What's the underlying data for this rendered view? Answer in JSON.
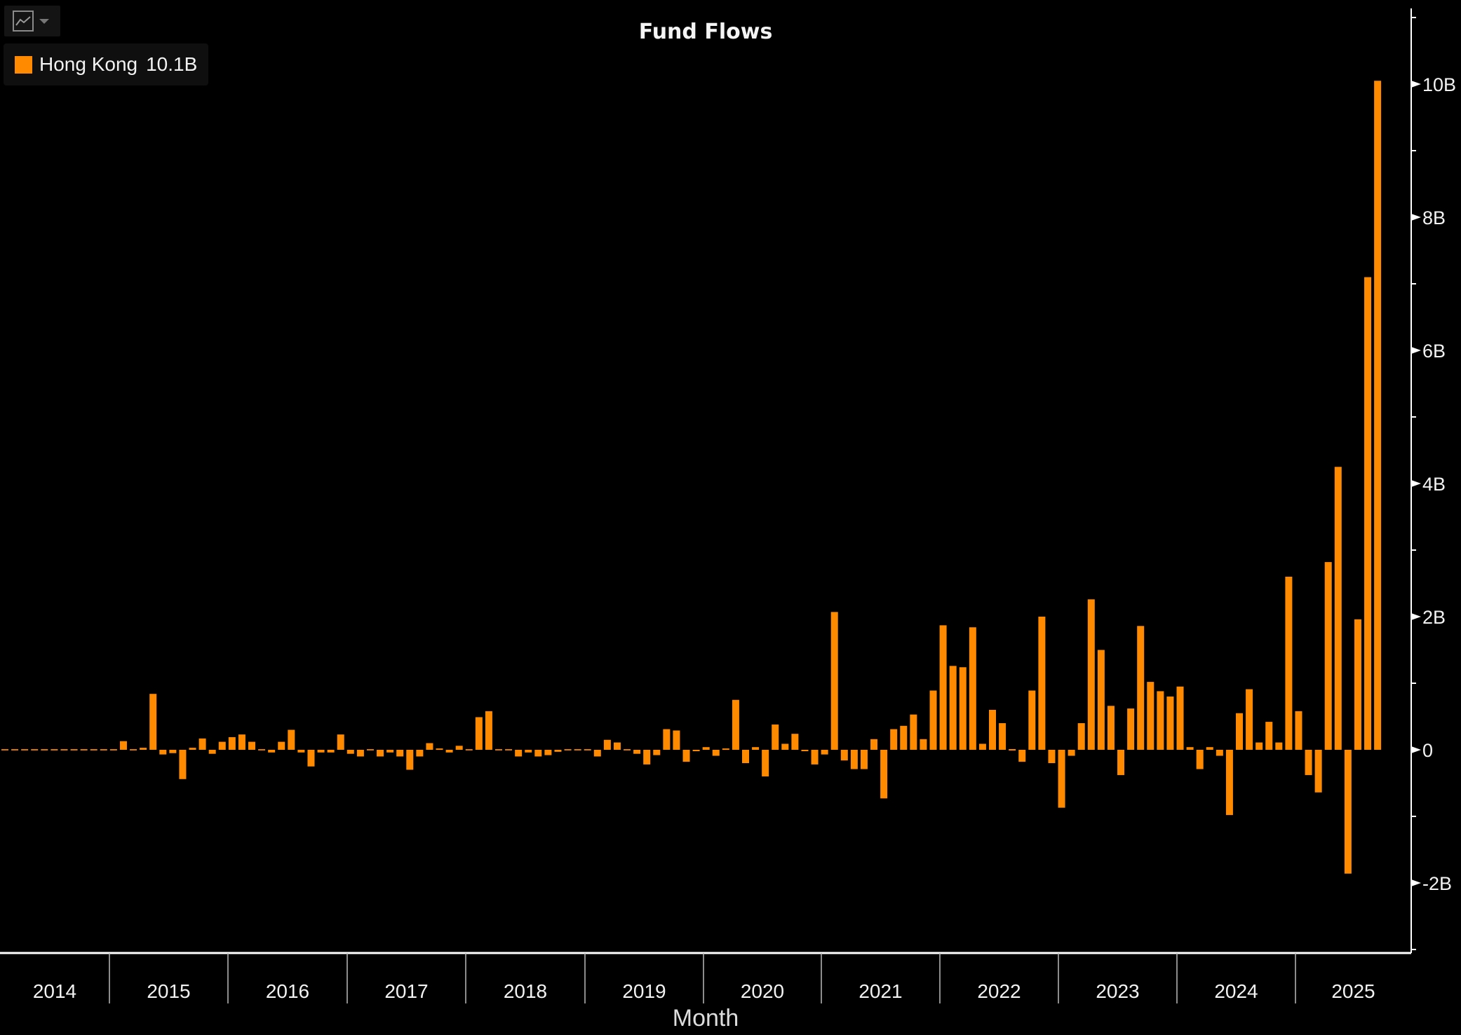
{
  "toolbar": {
    "chart_type_icon": "line-chart-icon",
    "dropdown_icon": "caret-down-icon"
  },
  "legend": {
    "series_name": "Hong Kong",
    "last_value": "10.1B",
    "color": "#ff8a00"
  },
  "colors": {
    "background": "#000000",
    "bar": "#ff8a00",
    "axis": "#ffffff",
    "text": "#f2f2f2"
  },
  "chart_data": {
    "type": "bar",
    "title": "Fund Flows",
    "xlabel": "Month",
    "ylabel": "",
    "y_unit": "B (USD billions)",
    "ylim": [
      -3,
      11
    ],
    "yticks": [
      -2,
      0,
      2,
      4,
      6,
      8,
      10
    ],
    "ytick_labels": [
      "-2B",
      "0",
      "2B",
      "4B",
      "6B",
      "8B",
      "10B"
    ],
    "x_year_labels": [
      "2014",
      "2015",
      "2016",
      "2017",
      "2018",
      "2019",
      "2020",
      "2021",
      "2022",
      "2023",
      "2024",
      "2025"
    ],
    "grid": false,
    "legend_position": "top-left",
    "y_axis_position": "right",
    "series": [
      {
        "name": "Hong Kong",
        "last_value_label": "10.1B",
        "start": "2014-02",
        "frequency": "monthly",
        "values": [
          0,
          0,
          0,
          0,
          0,
          0,
          0,
          0,
          0,
          0,
          0,
          0,
          0.13,
          0,
          0.03,
          0.84,
          -0.07,
          -0.05,
          -0.44,
          0.03,
          0.17,
          -0.06,
          0.12,
          0.19,
          0.23,
          0.12,
          0,
          -0.04,
          0.12,
          0.3,
          -0.04,
          -0.25,
          -0.04,
          -0.04,
          0.23,
          -0.06,
          -0.1,
          0,
          -0.1,
          -0.04,
          -0.1,
          -0.3,
          -0.1,
          0.1,
          0.02,
          -0.04,
          0.06,
          0,
          0.49,
          0.58,
          0,
          0,
          -0.1,
          -0.04,
          -0.1,
          -0.08,
          -0.03,
          0,
          0,
          0,
          -0.1,
          0.15,
          0.11,
          0,
          -0.06,
          -0.22,
          -0.08,
          0.31,
          0.29,
          -0.18,
          -0.02,
          0.04,
          -0.09,
          0.02,
          0.75,
          -0.2,
          0.04,
          -0.4,
          0.38,
          0.09,
          0.24,
          -0.01,
          -0.22,
          -0.07,
          2.07,
          -0.16,
          -0.29,
          -0.29,
          0.16,
          -0.73,
          0.31,
          0.36,
          0.53,
          0.16,
          0.89,
          1.87,
          1.26,
          1.24,
          1.84,
          0.09,
          0.6,
          0.4,
          0.01,
          -0.18,
          0.89,
          2.0,
          -0.2,
          -0.87,
          -0.09,
          0.4,
          2.26,
          1.5,
          0.66,
          -0.38,
          0.62,
          1.86,
          1.02,
          0.88,
          0.8,
          0.95,
          0.04,
          -0.29,
          0.04,
          -0.09,
          -0.98,
          0.55,
          0.91,
          0.11,
          0.42,
          0.11,
          2.6,
          0.58,
          -0.38,
          -0.64,
          2.82,
          4.25,
          -1.86,
          1.96,
          7.1,
          10.05
        ]
      }
    ]
  }
}
